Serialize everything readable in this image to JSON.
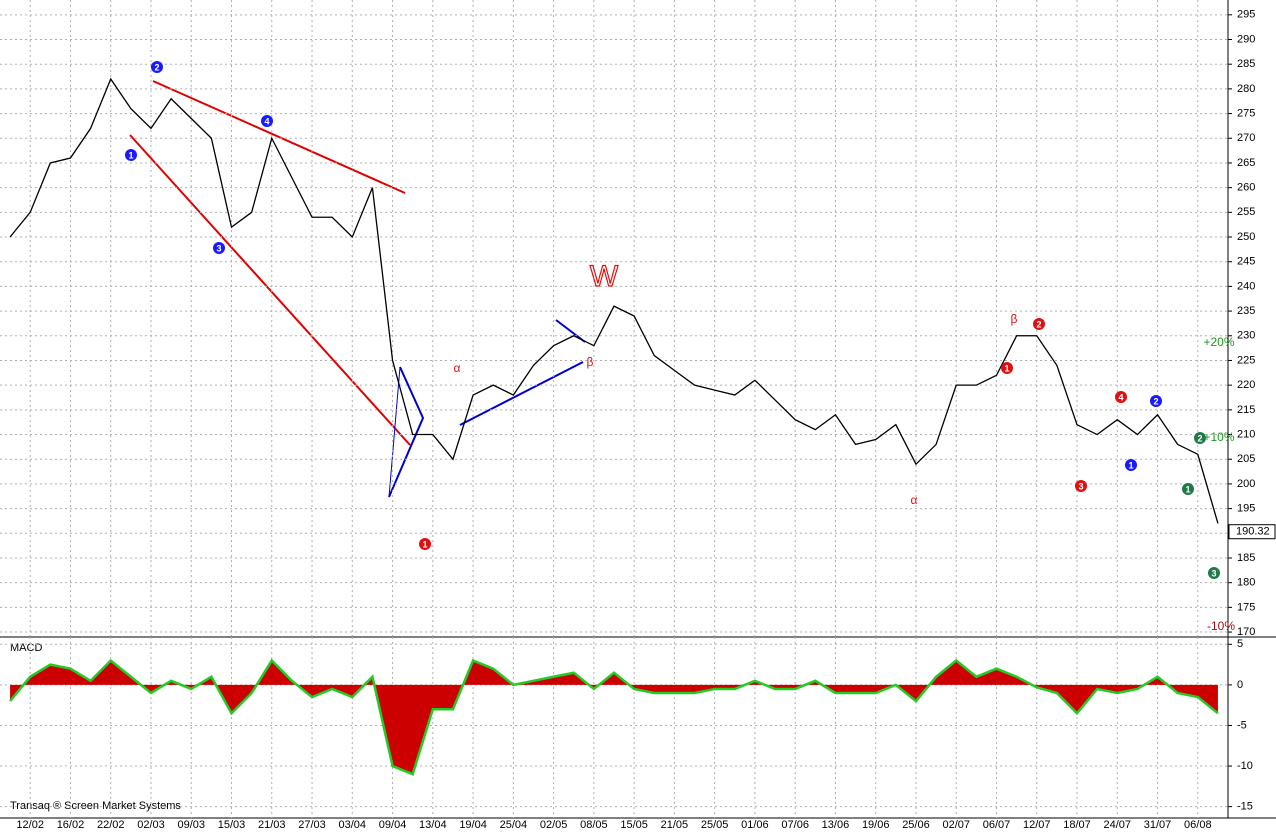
{
  "chart_data": [
    {
      "type": "line",
      "categories": [
        null,
        "12/02",
        null,
        "16/02",
        null,
        "22/02",
        null,
        "02/03",
        null,
        "09/03",
        null,
        "15/03",
        null,
        "21/03",
        null,
        "27/03",
        null,
        "03/04",
        null,
        "09/04",
        null,
        "13/04",
        null,
        "19/04",
        null,
        "25/04",
        null,
        "02/05",
        null,
        "08/05",
        null,
        "15/05",
        null,
        "21/05",
        null,
        "25/05",
        null,
        "01/06",
        null,
        "07/06",
        null,
        "13/06",
        null,
        "19/06",
        null,
        "25/06",
        null,
        "02/07",
        null,
        "06/07",
        null,
        "12/07",
        null,
        "18/07",
        null,
        "24/07",
        null,
        "31/07",
        null,
        "06/08",
        null
      ],
      "values": [
        250,
        255,
        265,
        266,
        272,
        282,
        276,
        272,
        278,
        274,
        270,
        252,
        255,
        270,
        262,
        254,
        254,
        250,
        260,
        225,
        210,
        210,
        205,
        218,
        220,
        218,
        224,
        228,
        230,
        228,
        236,
        234,
        226,
        223,
        220,
        219,
        218,
        221,
        217,
        213,
        211,
        214,
        208,
        209,
        212,
        204,
        208,
        220,
        220,
        222,
        230,
        230,
        224,
        212,
        210,
        213,
        210,
        214,
        208,
        206,
        192
      ],
      "color": "#000000",
      "last_price": 190.32,
      "ylim": [
        169.2,
        298
      ],
      "yticks": [
        170,
        175,
        180,
        185,
        190,
        195,
        200,
        205,
        210,
        215,
        220,
        225,
        230,
        235,
        240,
        245,
        250,
        255,
        260,
        265,
        270,
        275,
        280,
        285,
        290,
        295
      ],
      "grid": true,
      "annotations": [
        {
          "text": "1",
          "color": "#1a1aff"
        },
        {
          "text": "2",
          "color": "#1a1aff"
        },
        {
          "text": "3",
          "color": "#1a1aff"
        },
        {
          "text": "4",
          "color": "#1a1aff"
        },
        {
          "text": "1",
          "color": "#e01010"
        },
        {
          "text": "1",
          "color": "#e01010"
        },
        {
          "text": "2",
          "color": "#e01010"
        },
        {
          "text": "3",
          "color": "#e01010"
        },
        {
          "text": "4",
          "color": "#e01010"
        },
        {
          "text": "1",
          "color": "#1a1aff"
        },
        {
          "text": "2",
          "color": "#1a1aff"
        },
        {
          "text": "1",
          "color": "#1f7a4a"
        },
        {
          "text": "2",
          "color": "#1f7a4a"
        },
        {
          "text": "3",
          "color": "#1f7a4a"
        },
        {
          "text": "W",
          "color": "#e01010"
        },
        {
          "text": "α",
          "color": "#e01010"
        },
        {
          "text": "β",
          "color": "#e01010"
        },
        {
          "text": "α",
          "color": "#e01010"
        },
        {
          "text": "β",
          "color": "#e01010"
        },
        {
          "text": "+20%",
          "color": "#1a9a1a"
        },
        {
          "text": "+10%",
          "color": "#1a9a1a"
        },
        {
          "text": "-10%",
          "color": "#a01010"
        }
      ]
    },
    {
      "type": "area",
      "title": "MACD",
      "footer": "Transaq ® Screen Market Systems",
      "values": [
        -2,
        1,
        2.5,
        2,
        0.5,
        3,
        1,
        -1,
        0.5,
        -0.5,
        1,
        -3.5,
        -1,
        3,
        0.5,
        -1.5,
        -0.5,
        -1.5,
        1,
        -10,
        -11,
        -3,
        -3,
        3,
        2,
        0,
        0.5,
        1,
        1.5,
        -0.5,
        1.5,
        -0.5,
        -1,
        -1,
        -1,
        -0.5,
        -0.5,
        0.5,
        -0.5,
        -0.5,
        0.5,
        -1,
        -1,
        -1,
        0,
        -2,
        1,
        3,
        1,
        2,
        1,
        -0.3,
        -1,
        -3.5,
        -0.5,
        -1,
        -0.5,
        1,
        -1,
        -1.5,
        -3.5
      ],
      "color": "#cc0000",
      "line_color": "#22cc22",
      "ylim": [
        -16.4,
        5.9
      ],
      "yticks": [
        -15,
        -10,
        -5,
        0,
        5
      ],
      "grid": true
    }
  ]
}
